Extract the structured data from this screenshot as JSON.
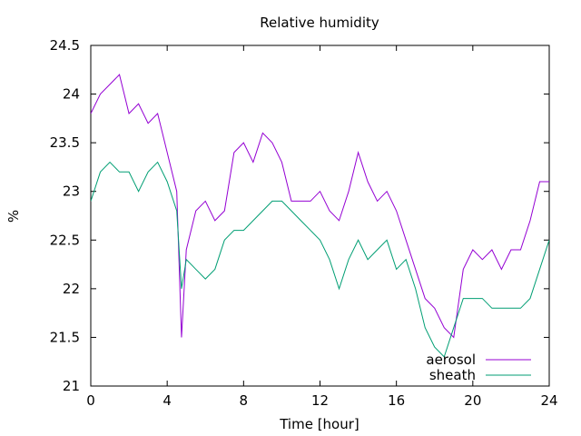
{
  "chart_data": {
    "type": "line",
    "title": "Relative humidity",
    "xlabel": "Time [hour]",
    "ylabel": "%",
    "xlim": [
      0,
      24
    ],
    "ylim": [
      21,
      24.5
    ],
    "xticks": [
      0,
      4,
      8,
      12,
      16,
      20,
      24
    ],
    "yticks": [
      21,
      21.5,
      22,
      22.5,
      23,
      23.5,
      24,
      24.5
    ],
    "xtick_labels": [
      "0",
      "4",
      "8",
      "12",
      "16",
      "20",
      "24"
    ],
    "ytick_labels": [
      "21",
      "21.5",
      "22",
      "22.5",
      "23",
      "23.5",
      "24",
      "24.5"
    ],
    "grid": false,
    "legend_position": "bottom-right",
    "series": [
      {
        "name": "aerosol",
        "color": "#9400d3",
        "x": [
          0,
          0.5,
          1,
          1.5,
          2,
          2.5,
          3,
          3.5,
          4,
          4.5,
          4.75,
          5,
          5.5,
          6,
          6.5,
          7,
          7.5,
          8,
          8.5,
          9,
          9.5,
          10,
          10.5,
          11,
          11.5,
          12,
          12.5,
          13,
          13.5,
          14,
          14.5,
          15,
          15.5,
          16,
          16.5,
          17,
          17.5,
          18,
          18.5,
          19,
          19.5,
          20,
          20.5,
          21,
          21.5,
          22,
          22.5,
          23,
          23.5,
          24
        ],
        "values": [
          23.8,
          24.0,
          24.1,
          24.2,
          23.8,
          23.9,
          23.7,
          23.8,
          23.4,
          23.0,
          21.5,
          22.4,
          22.8,
          22.9,
          22.7,
          22.8,
          23.4,
          23.5,
          23.3,
          23.6,
          23.5,
          23.3,
          22.9,
          22.9,
          22.9,
          23.0,
          22.8,
          22.7,
          23.0,
          23.4,
          23.1,
          22.9,
          23.0,
          22.8,
          22.5,
          22.2,
          21.9,
          21.8,
          21.6,
          21.5,
          22.2,
          22.4,
          22.3,
          22.4,
          22.2,
          22.4,
          22.4,
          22.7,
          23.1,
          23.1
        ]
      },
      {
        "name": "sheath",
        "color": "#009e73",
        "x": [
          0,
          0.5,
          1,
          1.5,
          2,
          2.5,
          3,
          3.5,
          4,
          4.5,
          4.75,
          5,
          5.5,
          6,
          6.5,
          7,
          7.5,
          8,
          8.5,
          9,
          9.5,
          10,
          10.5,
          11,
          11.5,
          12,
          12.5,
          13,
          13.5,
          14,
          14.5,
          15,
          15.5,
          16,
          16.5,
          17,
          17.5,
          18,
          18.5,
          19,
          19.5,
          20,
          20.5,
          21,
          21.5,
          22,
          22.5,
          23,
          23.5,
          24
        ],
        "values": [
          22.9,
          23.2,
          23.3,
          23.2,
          23.2,
          23.0,
          23.2,
          23.3,
          23.1,
          22.8,
          22.0,
          22.3,
          22.2,
          22.1,
          22.2,
          22.5,
          22.6,
          22.6,
          22.7,
          22.8,
          22.9,
          22.9,
          22.8,
          22.7,
          22.6,
          22.5,
          22.3,
          22.0,
          22.3,
          22.5,
          22.3,
          22.4,
          22.5,
          22.2,
          22.3,
          22.0,
          21.6,
          21.4,
          21.3,
          21.6,
          21.9,
          21.9,
          21.9,
          21.8,
          21.8,
          21.8,
          21.8,
          21.9,
          22.2,
          22.5
        ]
      }
    ]
  }
}
